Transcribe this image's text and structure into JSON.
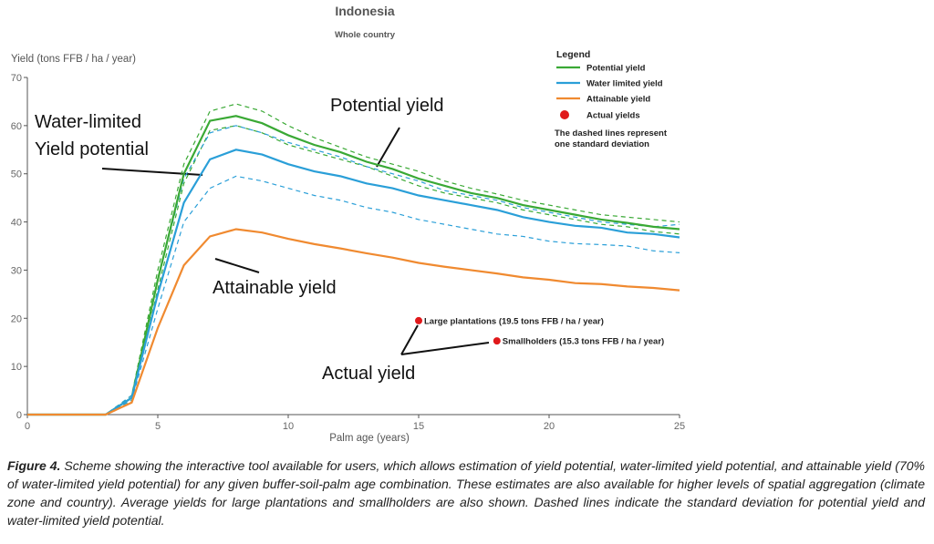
{
  "chart_data": {
    "type": "line",
    "title": "Indonesia",
    "subtitle": "Whole country",
    "y_label": "Yield (tons FFB / ha / year)",
    "x_label": "Palm age (years)",
    "x": [
      0,
      1,
      2,
      3,
      4,
      5,
      6,
      7,
      8,
      9,
      10,
      11,
      12,
      13,
      14,
      15,
      16,
      17,
      18,
      19,
      20,
      21,
      22,
      23,
      24,
      25
    ],
    "series": [
      {
        "name": "Potential yield",
        "color": "#3aa935",
        "values": [
          0,
          0,
          0,
          0,
          3.5,
          28,
          50,
          61,
          62,
          60.5,
          58,
          56,
          54.5,
          52.5,
          51,
          49,
          47.5,
          46,
          45,
          43.5,
          42.5,
          41.5,
          40.5,
          39.8,
          39,
          38.5
        ],
        "sd_upper": [
          0,
          0,
          0,
          0,
          4,
          30,
          52,
          63,
          64.5,
          63,
          60,
          57.5,
          55.5,
          53.5,
          52,
          50.5,
          48.5,
          47,
          45.8,
          44.5,
          43.5,
          42.5,
          41.5,
          41,
          40.5,
          40
        ],
        "sd_lower": [
          0,
          0,
          0,
          0,
          3,
          26,
          48,
          59,
          60,
          58.5,
          56,
          54.5,
          53,
          51.5,
          49.5,
          47.5,
          46,
          45,
          44,
          42.5,
          41.5,
          40.5,
          39.5,
          39,
          38,
          37.5
        ]
      },
      {
        "name": "Water limited yield",
        "color": "#2a9fd8",
        "values": [
          0,
          0,
          0,
          0,
          3.5,
          25,
          44,
          53,
          55,
          54,
          52,
          50.5,
          49.5,
          48,
          47,
          45.5,
          44.5,
          43.5,
          42.5,
          41,
          40,
          39.2,
          38.8,
          37.8,
          37.5,
          36.8
        ],
        "sd_upper": [
          0,
          0,
          0,
          0,
          4,
          28,
          49,
          58.5,
          60,
          58.5,
          56.5,
          55,
          53.5,
          51.5,
          50,
          48.5,
          46.5,
          45.5,
          44.5,
          43,
          42,
          41,
          40,
          39.5,
          39,
          39.5
        ],
        "sd_lower": [
          0,
          0,
          0,
          0,
          3,
          22,
          40,
          47,
          49.5,
          48.5,
          47,
          45.5,
          44.5,
          43,
          42,
          40.5,
          39.5,
          38.5,
          37.5,
          37,
          36,
          35.5,
          35.3,
          35,
          34,
          33.6
        ]
      },
      {
        "name": "Attainable yield",
        "color": "#f08a30",
        "values": [
          0,
          0,
          0,
          0,
          2.5,
          18,
          31,
          37,
          38.5,
          37.8,
          36.5,
          35.4,
          34.5,
          33.5,
          32.6,
          31.5,
          30.7,
          30,
          29.3,
          28.5,
          28,
          27.3,
          27.1,
          26.6,
          26.3,
          25.8
        ]
      }
    ],
    "points": {
      "name": "Actual yields",
      "color": "#e0191b",
      "x": [
        15,
        18
      ],
      "values": [
        19.5,
        15.3
      ],
      "labels": [
        "Large plantations (19.5 tons FFB / ha / year)",
        "Smallholders (15.3 tons FFB / ha / year)"
      ]
    },
    "xlim": [
      0,
      25
    ],
    "xticks": [
      0,
      5,
      10,
      15,
      20,
      25
    ],
    "ylim": [
      0,
      70
    ],
    "yticks": [
      0,
      10,
      20,
      30,
      40,
      50,
      60,
      70
    ],
    "grid": false,
    "legend_title": "Legend",
    "legend_note": [
      "The dashed lines represent",
      "one standard deviation"
    ],
    "annotations": {
      "water_limited": [
        "Water-limited",
        "Yield potential"
      ],
      "potential": "Potential yield",
      "attainable": "Attainable yield",
      "actual": "Actual yield"
    }
  },
  "caption": {
    "label": "Figure 4.",
    "text": "Scheme showing the interactive tool available for users, which allows estimation of yield potential, water-limited yield potential, and attainable yield (70% of water-limited yield potential) for any given buffer-soil-palm age combination. These estimates are also available for higher levels of spatial aggregation (climate zone and country). Average yields for large plantations and smallholders are also shown. Dashed lines indicate the standard deviation for potential yield and water-limited yield potential."
  }
}
